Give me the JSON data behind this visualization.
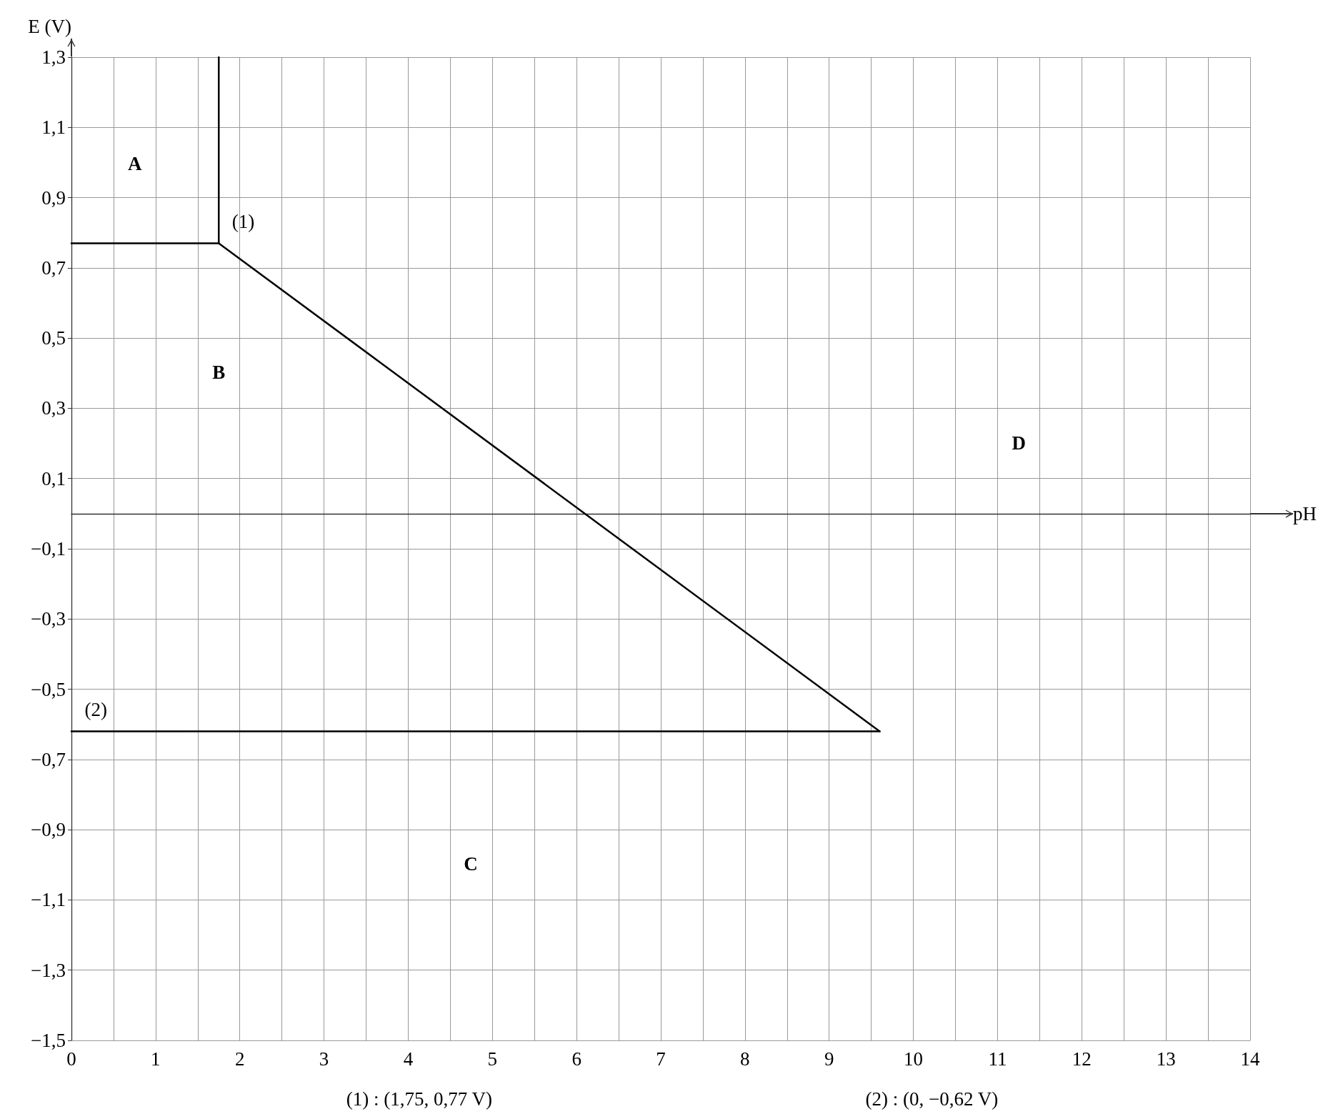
{
  "chart_data": {
    "type": "line",
    "xlabel": "pH",
    "ylabel": "E (V)",
    "xlim": [
      0,
      14
    ],
    "ylim": [
      -1.5,
      1.3
    ],
    "xticks": [
      0,
      {
        "value": 0.5,
        "label": null
      },
      1,
      {
        "value": 1.5,
        "label": null
      },
      2,
      {
        "value": 2.5,
        "label": null
      },
      3,
      {
        "value": 3.5,
        "label": null
      },
      4,
      {
        "value": 4.5,
        "label": null
      },
      5,
      {
        "value": 5.5,
        "label": null
      },
      6,
      {
        "value": 6.5,
        "label": null
      },
      7,
      {
        "value": 7.5,
        "label": null
      },
      8,
      {
        "value": 8.5,
        "label": null
      },
      9,
      {
        "value": 9.5,
        "label": null
      },
      10,
      {
        "value": 10.5,
        "label": null
      },
      11,
      {
        "value": 11.5,
        "label": null
      },
      12,
      {
        "value": 12.5,
        "label": null
      },
      13,
      {
        "value": 13.5,
        "label": null
      },
      14
    ],
    "yticks": [
      {
        "value": -1.5,
        "label": "−1,5"
      },
      {
        "value": -1.3,
        "label": "−1,3"
      },
      {
        "value": -1.1,
        "label": "−1,1"
      },
      {
        "value": -0.9,
        "label": "−0,9"
      },
      {
        "value": -0.7,
        "label": "−0,7"
      },
      {
        "value": -0.5,
        "label": "−0,5"
      },
      {
        "value": -0.3,
        "label": "−0,3"
      },
      {
        "value": -0.1,
        "label": "−0,1"
      },
      {
        "value": 0.1,
        "label": "0,1"
      },
      {
        "value": 0.3,
        "label": "0,3"
      },
      {
        "value": 0.5,
        "label": "0,5"
      },
      {
        "value": 0.7,
        "label": "0,7"
      },
      {
        "value": 0.9,
        "label": "0,9"
      },
      {
        "value": 1.1,
        "label": "1,1"
      },
      {
        "value": 1.3,
        "label": "1,3"
      }
    ],
    "grid": true,
    "marker": "none",
    "line_style": "solid",
    "series": [
      {
        "color": "#000000",
        "x": [
          1.75,
          1.75
        ],
        "values": [
          0.77,
          1.3
        ]
      },
      {
        "color": "#000000",
        "x": [
          0,
          1.75
        ],
        "values": [
          0.77,
          0.77
        ]
      },
      {
        "color": "#000000",
        "x": [
          1.75,
          9.6
        ],
        "values": [
          0.77,
          -0.62
        ]
      },
      {
        "color": "#000000",
        "x": [
          0,
          9.6
        ],
        "values": [
          -0.62,
          -0.62
        ]
      }
    ],
    "annotations": [
      "A",
      "B",
      "C",
      "D",
      {
        "text": "(1)",
        "x": 1.75,
        "y": 0.77
      },
      {
        "text": "(2)",
        "x": 0,
        "y": -0.62
      },
      "(1) : (1,75, 0,77 V)",
      "(2) : (0, −0,62 V)"
    ]
  }
}
